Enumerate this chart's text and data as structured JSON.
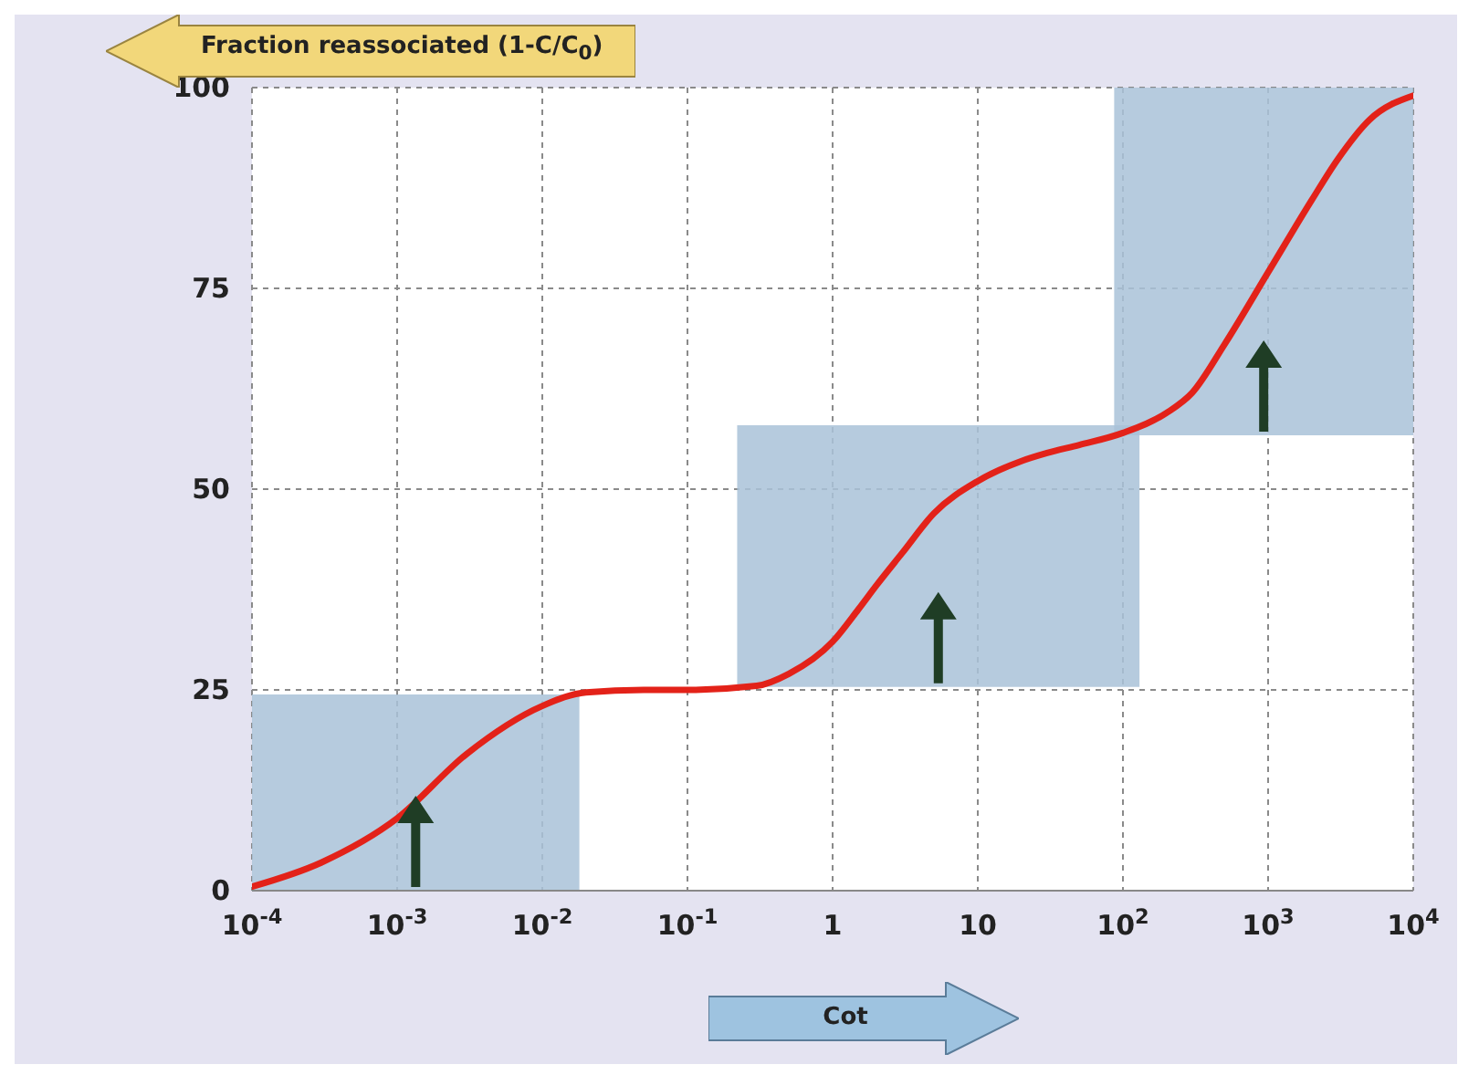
{
  "chart_data": {
    "type": "line",
    "xlabel": "Cot",
    "ylabel": "Fraction reassociated (1-C/C$_{0}$)",
    "log": "x",
    "x": [
      0.0001,
      0.0003,
      0.001,
      0.003,
      0.01,
      0.02,
      0.05,
      0.1,
      0.3,
      0.5,
      1,
      1.5,
      2,
      3,
      5,
      10,
      20,
      30,
      50,
      100,
      200,
      300,
      500,
      1000,
      2000,
      3000,
      5000,
      10000
    ],
    "series": [
      {
        "color": "#e32219",
        "values": [
          0.5,
          3.5,
          9,
          17,
          23,
          24.7,
          25,
          25,
          25.5,
          27,
          31,
          35,
          38,
          42,
          47,
          51,
          53.5,
          54.5,
          55.5,
          57,
          59.5,
          62,
          68,
          77,
          86,
          91,
          96,
          99
        ]
      }
    ],
    "xlim": [
      0.0001,
      10000
    ],
    "ylim": [
      0,
      100
    ],
    "xticks": [
      {
        "value": 0.0001,
        "label": "10$^{-4}$"
      },
      {
        "value": 0.001,
        "label": "10$^{-3}$"
      },
      {
        "value": 0.01,
        "label": "10$^{-2}$"
      },
      {
        "value": 0.1,
        "label": "10$^{-1}$"
      },
      1,
      10,
      {
        "value": 100,
        "label": "10$^{2}$"
      },
      {
        "value": 1000,
        "label": "10$^{3}$"
      },
      {
        "value": 10000,
        "label": "10$^{4}$"
      }
    ],
    "yticks": [
      0,
      25,
      50,
      75,
      100
    ],
    "bands": [
      {
        "axis": "x",
        "from": 0.0001,
        "to": 0.018,
        "color": "#a9c2d8"
      },
      {
        "axis": "x",
        "from": 0.22,
        "to": 130,
        "color": "#a9c2d8"
      },
      {
        "axis": "x",
        "from": 87,
        "to": 10000,
        "color": "#a9c2d8"
      }
    ],
    "grid": true,
    "marker": "none",
    "line_style": "solid",
    "legend": false
  }
}
